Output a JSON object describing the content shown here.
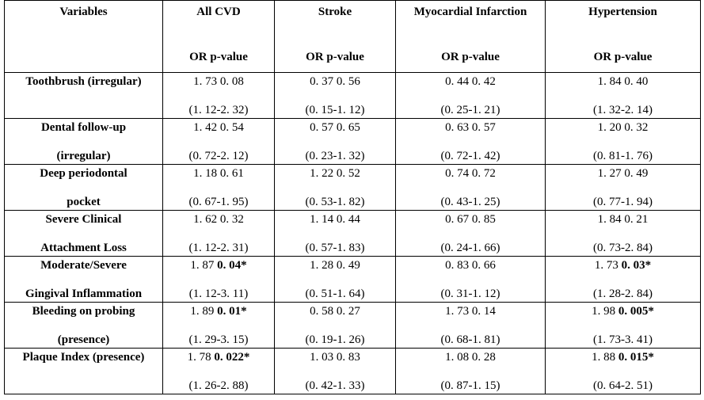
{
  "header": {
    "variables": "Variables",
    "columns": [
      {
        "name": "All CVD",
        "sub": "OR p-value"
      },
      {
        "name": "Stroke",
        "sub": "OR p-value"
      },
      {
        "name": "Myocardial Infarction",
        "sub": "OR p-value"
      },
      {
        "name": "Hypertension",
        "sub": "OR p-value"
      }
    ]
  },
  "rows": [
    {
      "label1": "Toothbrush (irregular)",
      "label2": "",
      "cells": [
        {
          "or": "1. 73",
          "p": "0. 08",
          "sig": false,
          "ci": "(1. 12-2. 32)"
        },
        {
          "or": "0. 37",
          "p": "0. 56",
          "sig": false,
          "ci": "(0. 15-1. 12)"
        },
        {
          "or": "0. 44",
          "p": "0. 42",
          "sig": false,
          "ci": "(0. 25-1. 21)"
        },
        {
          "or": "1. 84",
          "p": "0. 40",
          "sig": false,
          "ci": "(1. 32-2. 14)"
        }
      ]
    },
    {
      "label1": "Dental follow-up",
      "label2": "(irregular)",
      "cells": [
        {
          "or": "1. 42",
          "p": "0. 54",
          "sig": false,
          "ci": "(0. 72-2. 12)"
        },
        {
          "or": "0. 57",
          "p": "0. 65",
          "sig": false,
          "ci": "(0. 23-1. 32)"
        },
        {
          "or": "0. 63",
          "p": "0. 57",
          "sig": false,
          "ci": "(0. 72-1. 42)"
        },
        {
          "or": "1. 20",
          "p": "0. 32",
          "sig": false,
          "ci": "(0. 81-1. 76)"
        }
      ]
    },
    {
      "label1": "Deep periodontal",
      "label2": "pocket",
      "cells": [
        {
          "or": "1. 18",
          "p": "0. 61",
          "sig": false,
          "ci": "(0. 67-1. 95)"
        },
        {
          "or": "1. 22",
          "p": "0. 52",
          "sig": false,
          "ci": "(0. 53-1. 82)"
        },
        {
          "or": "0. 74",
          "p": "0. 72",
          "sig": false,
          "ci": "(0. 43-1. 25)"
        },
        {
          "or": "1. 27",
          "p": "0. 49",
          "sig": false,
          "ci": "(0. 77-1. 94)"
        }
      ]
    },
    {
      "label1": "Severe Clinical",
      "label2": "Attachment Loss",
      "cells": [
        {
          "or": "1. 62",
          "p": "0. 32",
          "sig": false,
          "ci": "(1. 12-2. 31)"
        },
        {
          "or": "1. 14",
          "p": "0. 44",
          "sig": false,
          "ci": "(0. 57-1. 83)"
        },
        {
          "or": "0. 67",
          "p": "0. 85",
          "sig": false,
          "ci": "(0. 24-1. 66)"
        },
        {
          "or": "1. 84",
          "p": "0. 21",
          "sig": false,
          "ci": "(0. 73-2. 84)"
        }
      ]
    },
    {
      "label1": "Moderate/Severe",
      "label2": "Gingival Inflammation",
      "cells": [
        {
          "or": "1. 87",
          "p": "0. 04*",
          "sig": true,
          "ci": "(1. 12-3. 11)"
        },
        {
          "or": "1. 28",
          "p": "0. 49",
          "sig": false,
          "ci": "(0. 51-1. 64)"
        },
        {
          "or": "0. 83",
          "p": "0. 66",
          "sig": false,
          "ci": "(0. 31-1. 12)"
        },
        {
          "or": "1. 73",
          "p": "0. 03*",
          "sig": true,
          "ci": "(1. 28-2. 84)"
        }
      ]
    },
    {
      "label1": "Bleeding on probing",
      "label2": "(presence)",
      "cells": [
        {
          "or": "1. 89",
          "p": "0. 01*",
          "sig": true,
          "ci": "(1. 29-3. 15)"
        },
        {
          "or": "0. 58",
          "p": "0. 27",
          "sig": false,
          "ci": "(0. 19-1. 26)"
        },
        {
          "or": "1. 73",
          "p": "0. 14",
          "sig": false,
          "ci": "(0. 68-1. 81)"
        },
        {
          "or": "1. 98",
          "p": "0. 005*",
          "sig": true,
          "ci": "(1. 73-3. 41)"
        }
      ]
    },
    {
      "label1": "Plaque Index (presence)",
      "label2": "",
      "cells": [
        {
          "or": "1. 78",
          "p": "0. 022*",
          "sig": true,
          "ci": "(1. 26-2. 88)"
        },
        {
          "or": "1. 03",
          "p": "0. 83",
          "sig": false,
          "ci": "(0. 42-1. 33)"
        },
        {
          "or": "1. 08",
          "p": "0. 28",
          "sig": false,
          "ci": "(0. 87-1. 15)"
        },
        {
          "or": "1. 88",
          "p": "0. 015*",
          "sig": true,
          "ci": "(0. 64-2. 51)"
        }
      ]
    }
  ]
}
